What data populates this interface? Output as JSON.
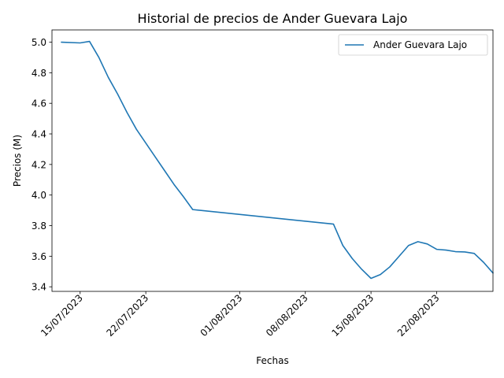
{
  "chart_data": {
    "type": "line",
    "title": "Historial de precios de Ander Guevara Lajo",
    "xlabel": "Fechas",
    "ylabel": "Precios (M)",
    "x_ticks": [
      "15/07/2023",
      "22/07/2023",
      "01/08/2023",
      "08/08/2023",
      "15/08/2023",
      "22/08/2023"
    ],
    "y_ticks": [
      "3.4",
      "3.6",
      "3.8",
      "4.0",
      "4.2",
      "4.4",
      "4.6",
      "4.8",
      "5.0"
    ],
    "xlim": [
      "2023-07-12",
      "2023-08-28"
    ],
    "ylim": [
      3.37,
      5.08
    ],
    "grid": false,
    "legend_position": "top-right",
    "series": [
      {
        "name": "Ander Guevara Lajo",
        "color": "#1f77b4",
        "x": [
          "2023-07-13",
          "2023-07-15",
          "2023-07-16",
          "2023-07-17",
          "2023-07-18",
          "2023-07-19",
          "2023-07-20",
          "2023-07-21",
          "2023-07-22",
          "2023-07-23",
          "2023-07-24",
          "2023-07-25",
          "2023-07-26",
          "2023-07-27",
          "2023-08-11",
          "2023-08-12",
          "2023-08-13",
          "2023-08-14",
          "2023-08-15",
          "2023-08-16",
          "2023-08-17",
          "2023-08-18",
          "2023-08-19",
          "2023-08-20",
          "2023-08-21",
          "2023-08-22",
          "2023-08-23",
          "2023-08-24",
          "2023-08-25",
          "2023-08-26",
          "2023-08-27",
          "2023-08-28"
        ],
        "y": [
          5.0,
          4.995,
          5.005,
          4.9,
          4.77,
          4.66,
          4.54,
          4.43,
          4.34,
          4.25,
          4.16,
          4.07,
          3.99,
          3.905,
          3.81,
          3.67,
          3.585,
          3.515,
          3.455,
          3.48,
          3.53,
          3.6,
          3.67,
          3.695,
          3.68,
          3.645,
          3.64,
          3.63,
          3.628,
          3.618,
          3.56,
          3.49
        ]
      }
    ]
  }
}
